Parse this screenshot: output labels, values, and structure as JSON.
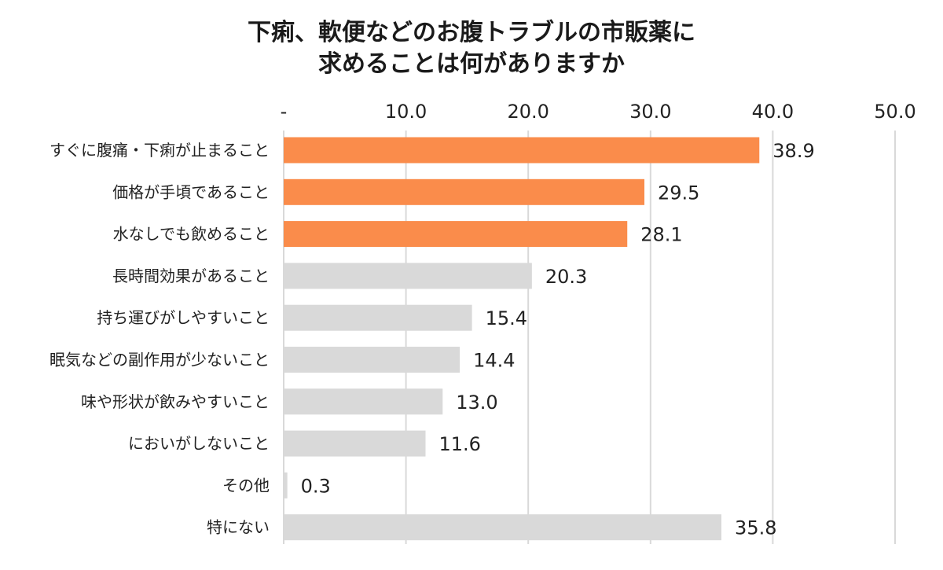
{
  "chart_data": {
    "type": "bar",
    "orientation": "horizontal",
    "title_lines": [
      "下痢、軟便などのお腹トラブルの市販薬に",
      "求めることは何がありますか"
    ],
    "categories": [
      "すぐに腹痛・下痢が止まること",
      "価格が手頃であること",
      "水なしでも飲めること",
      "長時間効果があること",
      "持ち運びがしやすいこと",
      "眠気などの副作用が少ないこと",
      "味や形状が飲みやすいこと",
      "においがしないこと",
      "その他",
      "特にない"
    ],
    "values": [
      38.9,
      29.5,
      28.1,
      20.3,
      15.4,
      14.4,
      13.0,
      11.6,
      0.3,
      35.8
    ],
    "value_labels": [
      "38.9",
      "29.5",
      "28.1",
      "20.3",
      "15.4",
      "14.4",
      "13.0",
      "11.6",
      "0.3",
      "35.8"
    ],
    "highlight_count": 3,
    "xlim": [
      0,
      50
    ],
    "ticks": [
      0,
      10,
      20,
      30,
      40,
      50
    ],
    "tick_labels": [
      "-",
      "10.0",
      "20.0",
      "30.0",
      "40.0",
      "50.0"
    ],
    "axis_position": "top",
    "grid": true,
    "colors": {
      "highlight": "#FA8C4B",
      "default": "#D9D9D9",
      "grid": "#D9D9D9"
    }
  }
}
